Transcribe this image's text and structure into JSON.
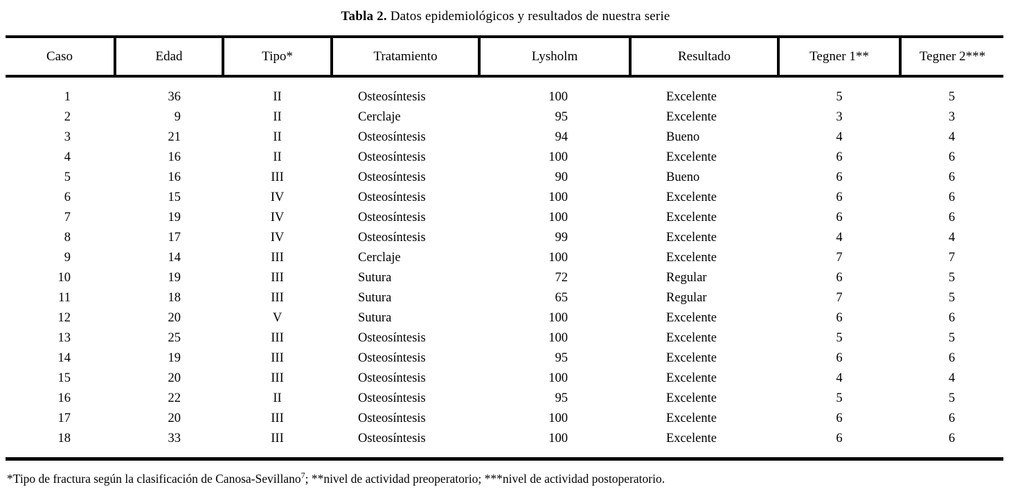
{
  "colors": {
    "text": "#000000",
    "background": "#ffffff",
    "rule": "#000000"
  },
  "title": {
    "label": "Tabla 2.",
    "text": " Datos epidemiológicos y resultados de nuestra serie"
  },
  "table": {
    "columns": [
      {
        "key": "caso",
        "label": "Caso"
      },
      {
        "key": "edad",
        "label": "Edad"
      },
      {
        "key": "tipo",
        "label": "Tipo*"
      },
      {
        "key": "tratamiento",
        "label": "Tratamiento"
      },
      {
        "key": "lysholm",
        "label": "Lysholm"
      },
      {
        "key": "resultado",
        "label": "Resultado"
      },
      {
        "key": "tegner1",
        "label": "Tegner 1**"
      },
      {
        "key": "tegner2",
        "label": "Tegner 2***"
      }
    ],
    "rows": [
      [
        "1",
        "36",
        "II",
        "Osteosíntesis",
        "100",
        "Excelente",
        "5",
        "5"
      ],
      [
        "2",
        "9",
        "II",
        "Cerclaje",
        "95",
        "Excelente",
        "3",
        "3"
      ],
      [
        "3",
        "21",
        "II",
        "Osteosíntesis",
        "94",
        "Bueno",
        "4",
        "4"
      ],
      [
        "4",
        "16",
        "II",
        "Osteosíntesis",
        "100",
        "Excelente",
        "6",
        "6"
      ],
      [
        "5",
        "16",
        "III",
        "Osteosíntesis",
        "90",
        "Bueno",
        "6",
        "6"
      ],
      [
        "6",
        "15",
        "IV",
        "Osteosíntesis",
        "100",
        "Excelente",
        "6",
        "6"
      ],
      [
        "7",
        "19",
        "IV",
        "Osteosíntesis",
        "100",
        "Excelente",
        "6",
        "6"
      ],
      [
        "8",
        "17",
        "IV",
        "Osteosíntesis",
        "99",
        "Excelente",
        "4",
        "4"
      ],
      [
        "9",
        "14",
        "III",
        "Cerclaje",
        "100",
        "Excelente",
        "7",
        "7"
      ],
      [
        "10",
        "19",
        "III",
        "Sutura",
        "72",
        "Regular",
        "6",
        "5"
      ],
      [
        "11",
        "18",
        "III",
        "Sutura",
        "65",
        "Regular",
        "7",
        "5"
      ],
      [
        "12",
        "20",
        "V",
        "Sutura",
        "100",
        "Excelente",
        "6",
        "6"
      ],
      [
        "13",
        "25",
        "III",
        "Osteosíntesis",
        "100",
        "Excelente",
        "5",
        "5"
      ],
      [
        "14",
        "19",
        "III",
        "Osteosíntesis",
        "95",
        "Excelente",
        "6",
        "6"
      ],
      [
        "15",
        "20",
        "III",
        "Osteosíntesis",
        "100",
        "Excelente",
        "4",
        "4"
      ],
      [
        "16",
        "22",
        "II",
        "Osteosíntesis",
        "95",
        "Excelente",
        "5",
        "5"
      ],
      [
        "17",
        "20",
        "III",
        "Osteosíntesis",
        "100",
        "Excelente",
        "6",
        "6"
      ],
      [
        "18",
        "33",
        "III",
        "Osteosíntesis",
        "100",
        "Excelente",
        "6",
        "6"
      ]
    ]
  },
  "footnote": {
    "part1": "*Tipo de fractura según la clasificación de Canosa-Sevillano",
    "sup": "7",
    "part2": "; **nivel de actividad preoperatorio; ***nivel de actividad postoperatorio."
  }
}
